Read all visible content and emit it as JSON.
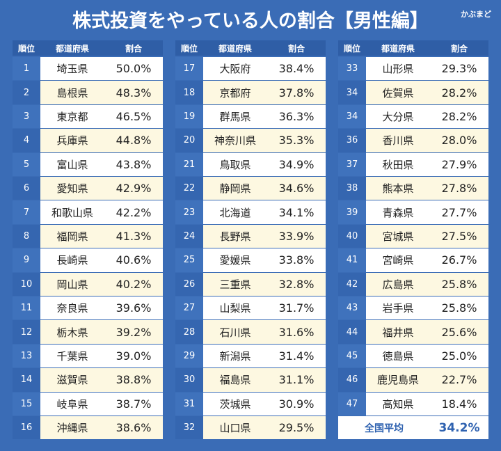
{
  "title": "株式投資をやっている人の割合【男性編】",
  "logo": "かぶまど",
  "tables": [
    {
      "header": [
        "順位",
        "都道府県",
        "割合"
      ],
      "rows": [
        [
          "1",
          "埼玉県",
          "50.0%"
        ],
        [
          "2",
          "島根県",
          "48.3%"
        ],
        [
          "3",
          "東京都",
          "46.5%"
        ],
        [
          "4",
          "兵庫県",
          "44.8%"
        ],
        [
          "5",
          "富山県",
          "43.8%"
        ],
        [
          "6",
          "愛知県",
          "42.9%"
        ],
        [
          "7",
          "和歌山県",
          "42.2%"
        ],
        [
          "8",
          "福岡県",
          "41.3%"
        ],
        [
          "9",
          "長崎県",
          "40.6%"
        ],
        [
          "10",
          "岡山県",
          "40.2%"
        ],
        [
          "11",
          "奈良県",
          "39.6%"
        ],
        [
          "12",
          "栃木県",
          "39.2%"
        ],
        [
          "13",
          "千葉県",
          "39.0%"
        ],
        [
          "14",
          "滋賀県",
          "38.8%"
        ],
        [
          "15",
          "岐阜県",
          "38.7%"
        ],
        [
          "16",
          "沖縄県",
          "38.6%"
        ]
      ]
    },
    {
      "header": [
        "順位",
        "都道府県",
        "割合"
      ],
      "rows": [
        [
          "17",
          "大阪府",
          "38.4%"
        ],
        [
          "18",
          "京都府",
          "37.8%"
        ],
        [
          "19",
          "群馬県",
          "36.3%"
        ],
        [
          "20",
          "神奈川県",
          "35.3%"
        ],
        [
          "21",
          "鳥取県",
          "34.9%"
        ],
        [
          "22",
          "静岡県",
          "34.6%"
        ],
        [
          "23",
          "北海道",
          "34.1%"
        ],
        [
          "24",
          "長野県",
          "33.9%"
        ],
        [
          "25",
          "愛媛県",
          "33.8%"
        ],
        [
          "26",
          "三重県",
          "32.8%"
        ],
        [
          "27",
          "山梨県",
          "31.7%"
        ],
        [
          "28",
          "石川県",
          "31.6%"
        ],
        [
          "29",
          "新潟県",
          "31.4%"
        ],
        [
          "30",
          "福島県",
          "31.1%"
        ],
        [
          "31",
          "茨城県",
          "30.9%"
        ],
        [
          "32",
          "山口県",
          "29.5%"
        ]
      ]
    },
    {
      "header": [
        "順位",
        "都道府県",
        "割合"
      ],
      "rows": [
        [
          "33",
          "山形県",
          "29.3%"
        ],
        [
          "34",
          "佐賀県",
          "28.2%"
        ],
        [
          "34",
          "大分県",
          "28.2%"
        ],
        [
          "36",
          "香川県",
          "28.0%"
        ],
        [
          "37",
          "秋田県",
          "27.9%"
        ],
        [
          "38",
          "熊本県",
          "27.8%"
        ],
        [
          "39",
          "青森県",
          "27.7%"
        ],
        [
          "40",
          "宮城県",
          "27.5%"
        ],
        [
          "41",
          "宮崎県",
          "26.7%"
        ],
        [
          "42",
          "広島県",
          "25.8%"
        ],
        [
          "43",
          "岩手県",
          "25.8%"
        ],
        [
          "44",
          "福井県",
          "25.6%"
        ],
        [
          "45",
          "徳島県",
          "25.0%"
        ],
        [
          "46",
          "鹿児島県",
          "22.7%"
        ],
        [
          "47",
          "高知県",
          "18.4%"
        ]
      ],
      "summary": [
        "全国平均",
        "34.2%"
      ]
    }
  ]
}
